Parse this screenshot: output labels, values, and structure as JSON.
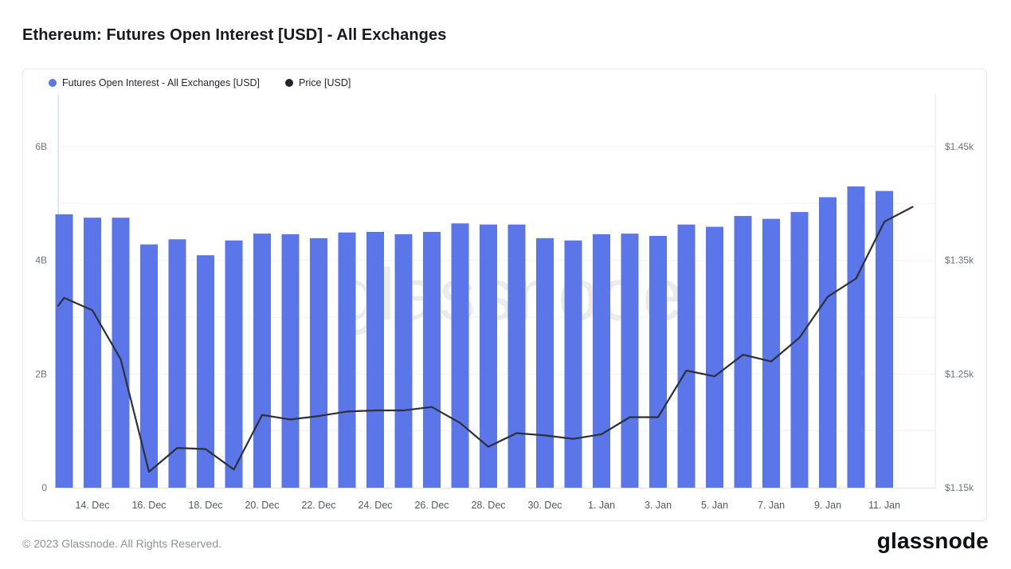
{
  "page": {
    "title": "Ethereum: Futures Open Interest [USD] - All Exchanges",
    "footer_copyright": "© 2023 Glassnode. All Rights Reserved.",
    "brand_logo": "glassnode",
    "watermark": "glassnode"
  },
  "legend": [
    {
      "label": "Futures Open Interest - All Exchanges [USD]",
      "color": "#5b76e8"
    },
    {
      "label": "Price [USD]",
      "color": "#222428"
    }
  ],
  "colors": {
    "bar": "#5b76e8",
    "price_line": "#2e3035",
    "grid": "#f1f2f4",
    "axis_line": "#e2e4e7",
    "left_axis_line": "#c6d2f5",
    "tick_text": "#6e7179",
    "watermark": "#ebebeb"
  },
  "chart_data": {
    "type": "bar",
    "title": "Ethereum: Futures Open Interest [USD] - All Exchanges",
    "legend_position": "top-left",
    "grid": "horizontal, 1B steps",
    "dates": [
      "13. Dec",
      "14. Dec",
      "15. Dec",
      "16. Dec",
      "17. Dec",
      "18. Dec",
      "19. Dec",
      "20. Dec",
      "21. Dec",
      "22. Dec",
      "23. Dec",
      "24. Dec",
      "25. Dec",
      "26. Dec",
      "27. Dec",
      "28. Dec",
      "29. Dec",
      "30. Dec",
      "31. Dec",
      "1. Jan",
      "2. Jan",
      "3. Jan",
      "4. Jan",
      "5. Jan",
      "6. Jan",
      "7. Jan",
      "8. Jan",
      "9. Jan",
      "10. Jan",
      "11. Jan",
      "12. Jan"
    ],
    "series": [
      {
        "name": "Futures Open Interest - All Exchanges [USD]",
        "type": "bar",
        "unit": "billions USD",
        "values": [
          4.81,
          4.75,
          4.75,
          4.28,
          4.37,
          4.09,
          4.35,
          4.47,
          4.46,
          4.39,
          4.49,
          4.5,
          4.46,
          4.5,
          4.65,
          4.63,
          4.63,
          4.39,
          4.35,
          4.46,
          4.47,
          4.43,
          4.63,
          4.59,
          4.78,
          4.73,
          4.85,
          5.11,
          5.3,
          5.22,
          null
        ]
      },
      {
        "name": "Price [USD]",
        "type": "line",
        "unit": "thousands USD",
        "values": [
          1.317,
          1.306,
          1.263,
          1.164,
          1.185,
          1.184,
          1.166,
          1.214,
          1.21,
          1.213,
          1.217,
          1.218,
          1.218,
          1.221,
          1.207,
          1.186,
          1.198,
          1.196,
          1.193,
          1.197,
          1.212,
          1.212,
          1.253,
          1.248,
          1.267,
          1.261,
          1.282,
          1.318,
          1.334,
          1.384,
          1.397
        ]
      }
    ],
    "clip_start_price": 1.31,
    "x_ticks": {
      "labels": [
        "14. Dec",
        "16. Dec",
        "18. Dec",
        "20. Dec",
        "22. Dec",
        "24. Dec",
        "26. Dec",
        "28. Dec",
        "30. Dec",
        "1. Jan",
        "3. Jan",
        "5. Jan",
        "7. Jan",
        "9. Jan",
        "11. Jan"
      ],
      "day_indices": [
        1,
        3,
        5,
        7,
        9,
        11,
        13,
        15,
        17,
        19,
        21,
        23,
        25,
        27,
        29
      ]
    },
    "y_left": {
      "labels": [
        "0",
        "2B",
        "4B",
        "6B"
      ],
      "values": [
        0,
        2,
        4,
        6
      ],
      "min": 0,
      "max": 6.93
    },
    "y_right": {
      "labels": [
        "$1.15k",
        "$1.25k",
        "$1.35k",
        "$1.45k"
      ],
      "values": [
        1.15,
        1.25,
        1.35,
        1.45
      ],
      "min": 1.15,
      "max": 1.496
    }
  }
}
